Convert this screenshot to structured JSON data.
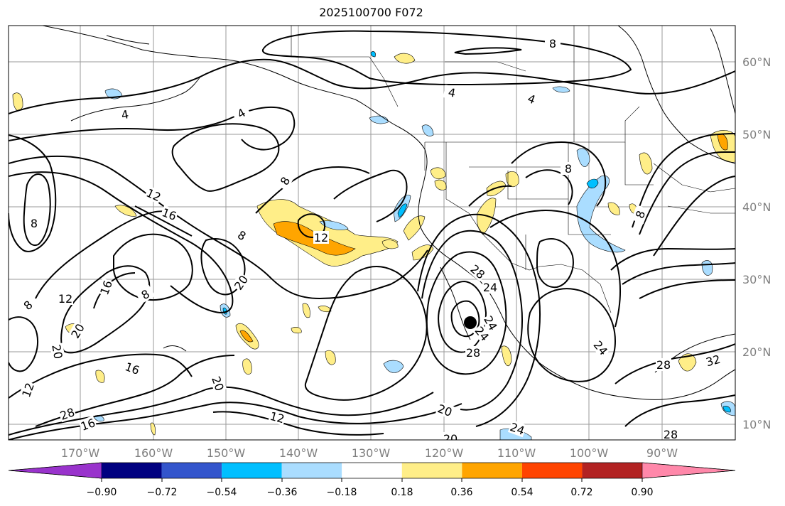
{
  "title": "2025100700 F072",
  "map": {
    "lon_ticks": [
      "170°W",
      "160°W",
      "150°W",
      "140°W",
      "130°W",
      "120°W",
      "110°W",
      "100°W",
      "90°W"
    ],
    "lat_ticks": [
      "60°N",
      "50°N",
      "40°N",
      "30°N",
      "20°N",
      "10°N"
    ],
    "contour_labels": [
      "8",
      "4",
      "4",
      "4",
      "4",
      "8",
      "8",
      "12",
      "16",
      "8",
      "12",
      "8",
      "20",
      "12",
      "8",
      "20",
      "20",
      "16",
      "16",
      "12",
      "20",
      "12",
      "28",
      "16",
      "28",
      "24",
      "24",
      "28",
      "20",
      "24",
      "24",
      "32",
      "28",
      "24",
      "8",
      "8",
      "20",
      "28"
    ],
    "storm_marker": "tropical-cyclone-symbol"
  },
  "colorbar": {
    "tick_labels": [
      "−0.90",
      "−0.72",
      "−0.54",
      "−0.36",
      "−0.18",
      "0.18",
      "0.36",
      "0.54",
      "0.72",
      "0.90"
    ],
    "colors": [
      "#9933cc",
      "#000080",
      "#3355cc",
      "#00bfff",
      "#aaddff",
      "#ffffff",
      "#ffee88",
      "#ffa500",
      "#ff4400",
      "#b22222",
      "#ff88aa"
    ]
  }
}
